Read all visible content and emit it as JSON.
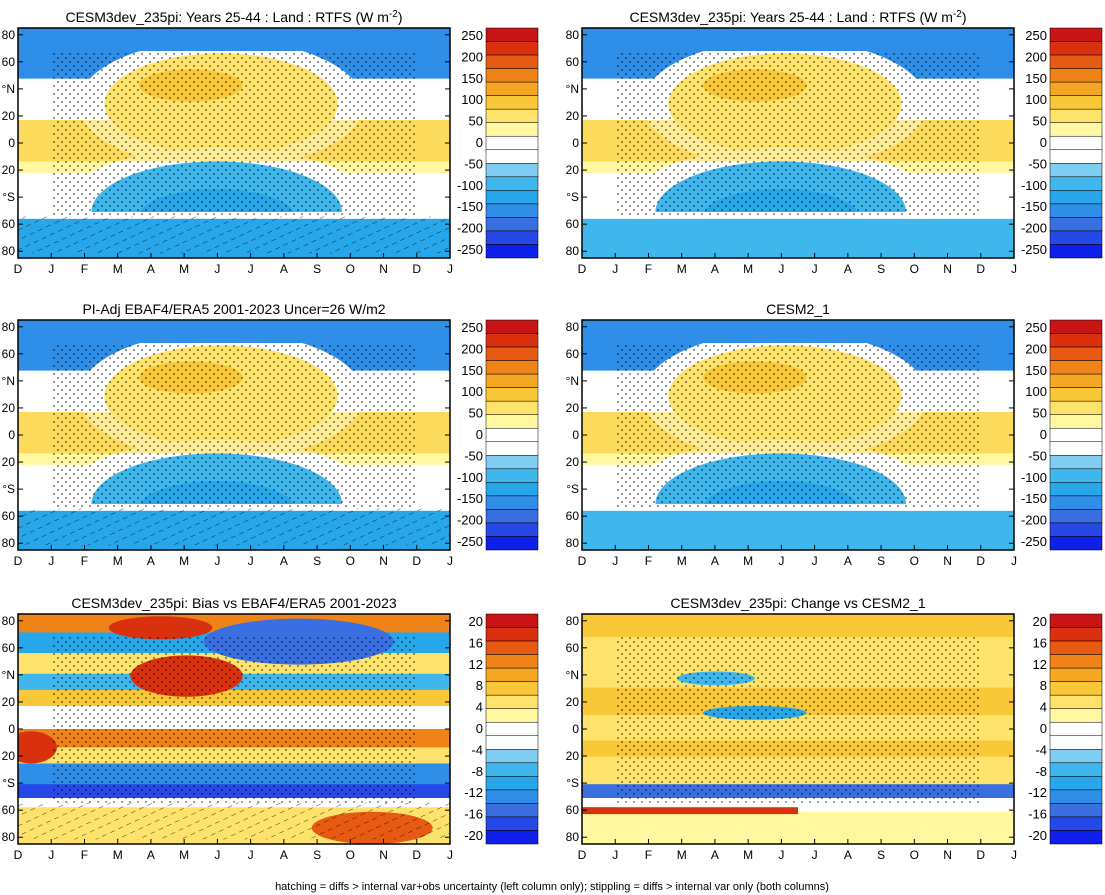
{
  "footer": "hatching = diffs > internal var+obs uncertainty (left column only); stippling = diffs > internal var only (both columns)",
  "months": [
    "D",
    "J",
    "F",
    "M",
    "A",
    "M",
    "J",
    "J",
    "A",
    "S",
    "O",
    "N",
    "D",
    "J"
  ],
  "lat_ticks": [
    "80",
    "60",
    "°N",
    "20",
    "0",
    "20",
    "°S",
    "60",
    "80"
  ],
  "colors": {
    "abs_levels": [
      "#0d1fe8",
      "#2548e6",
      "#3a6fe2",
      "#2f8ee8",
      "#27a6ea",
      "#3fb7ec",
      "#7fcdf0",
      "#ffffff",
      "#ffffff",
      "#fff8a0",
      "#fde36c",
      "#f9c838",
      "#f5a623",
      "#f08318",
      "#e85a12",
      "#d9300e",
      "#c81414"
    ],
    "diff_levels": [
      "#0d1fe8",
      "#2548e6",
      "#3a6fe2",
      "#2f8ee8",
      "#27a6ea",
      "#3fb7ec",
      "#7fcdf0",
      "#ffffff",
      "#ffffff",
      "#fff8a0",
      "#fde36c",
      "#f9c838",
      "#f5a623",
      "#f08318",
      "#e85a12",
      "#d9300e",
      "#c81414"
    ]
  },
  "chart_data": [
    {
      "type": "heatmap",
      "title": "CESM3dev_235pi: Years 25-44 : Land : RTFS (W m",
      "title_sup": "-2",
      "title_end": ")",
      "x": [
        "D",
        "J",
        "F",
        "M",
        "A",
        "M",
        "J",
        "J",
        "A",
        "S",
        "O",
        "N",
        "D",
        "J"
      ],
      "y_ticks": [
        "80",
        "60",
        "°N",
        "20",
        "0",
        "20",
        "°S",
        "60",
        "80"
      ],
      "colorbar_levels": [
        250,
        200,
        150,
        100,
        50,
        0,
        -50,
        -100,
        -150,
        -200,
        -250
      ],
      "pattern": "abs",
      "stipple": true,
      "hatch": true
    },
    {
      "type": "heatmap",
      "title": "CESM3dev_235pi: Years 25-44 : Land : RTFS (W m",
      "title_sup": "-2",
      "title_end": ")",
      "x": [
        "D",
        "J",
        "F",
        "M",
        "A",
        "M",
        "J",
        "J",
        "A",
        "S",
        "O",
        "N",
        "D",
        "J"
      ],
      "y_ticks": [
        "80",
        "60",
        "°N",
        "20",
        "0",
        "20",
        "°S",
        "60",
        "80"
      ],
      "colorbar_levels": [
        250,
        200,
        150,
        100,
        50,
        0,
        -50,
        -100,
        -150,
        -200,
        -250
      ],
      "pattern": "abs2",
      "stipple": true,
      "hatch": false
    },
    {
      "type": "heatmap",
      "title": "PI-Adj EBAF4/ERA5 2001-2023 Uncer=26 W/m2",
      "x": [
        "D",
        "J",
        "F",
        "M",
        "A",
        "M",
        "J",
        "J",
        "A",
        "S",
        "O",
        "N",
        "D",
        "J"
      ],
      "y_ticks": [
        "80",
        "60",
        "°N",
        "20",
        "0",
        "20",
        "°S",
        "60",
        "80"
      ],
      "colorbar_levels": [
        250,
        200,
        150,
        100,
        50,
        0,
        -50,
        -100,
        -150,
        -200,
        -250
      ],
      "pattern": "abs",
      "stipple": true,
      "hatch": true
    },
    {
      "type": "heatmap",
      "title": "CESM2_1",
      "x": [
        "D",
        "J",
        "F",
        "M",
        "A",
        "M",
        "J",
        "J",
        "A",
        "S",
        "O",
        "N",
        "D",
        "J"
      ],
      "y_ticks": [
        "80",
        "60",
        "°N",
        "20",
        "0",
        "20",
        "°S",
        "60",
        "80"
      ],
      "colorbar_levels": [
        250,
        200,
        150,
        100,
        50,
        0,
        -50,
        -100,
        -150,
        -200,
        -250
      ],
      "pattern": "abs2",
      "stipple": true,
      "hatch": false
    },
    {
      "type": "heatmap",
      "title": "CESM3dev_235pi: Bias vs EBAF4/ERA5 2001-2023",
      "x": [
        "D",
        "J",
        "F",
        "M",
        "A",
        "M",
        "J",
        "J",
        "A",
        "S",
        "O",
        "N",
        "D",
        "J"
      ],
      "y_ticks": [
        "80",
        "60",
        "°N",
        "20",
        "0",
        "20",
        "°S",
        "60",
        "80"
      ],
      "colorbar_levels": [
        20,
        16,
        12,
        8,
        4,
        0,
        -4,
        -8,
        -12,
        -16,
        -20
      ],
      "pattern": "bias",
      "stipple": true,
      "hatch": true
    },
    {
      "type": "heatmap",
      "title": "CESM3dev_235pi: Change vs CESM2_1",
      "x": [
        "D",
        "J",
        "F",
        "M",
        "A",
        "M",
        "J",
        "J",
        "A",
        "S",
        "O",
        "N",
        "D",
        "J"
      ],
      "y_ticks": [
        "80",
        "60",
        "°N",
        "20",
        "0",
        "20",
        "°S",
        "60",
        "80"
      ],
      "colorbar_levels": [
        20,
        16,
        12,
        8,
        4,
        0,
        -4,
        -8,
        -12,
        -16,
        -20
      ],
      "pattern": "change",
      "stipple": true,
      "hatch": false
    }
  ]
}
